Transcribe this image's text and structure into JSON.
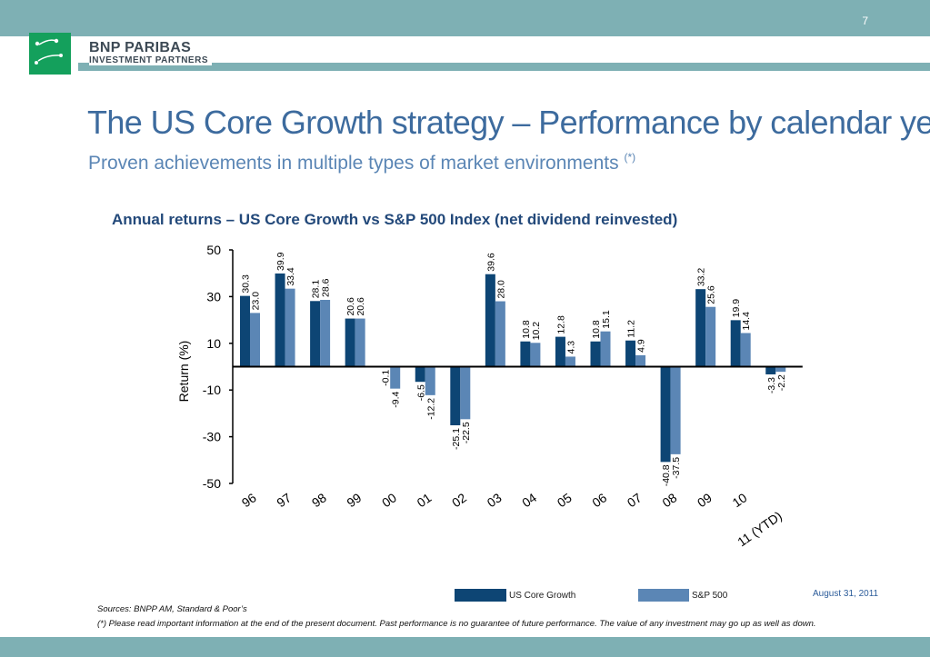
{
  "header": {
    "page_number": "7",
    "brand_name": "BNP PARIBAS",
    "brand_sub": "INVESTMENT PARTNERS"
  },
  "title": "The US Core Growth strategy – Performance by calendar year",
  "subtitle": "Proven achievements in multiple types of market environments",
  "subtitle_note": "(*)",
  "chart_title": "Annual returns – US Core Growth vs S&P 500 Index (net dividend reinvested)",
  "colors": {
    "accent_band": "#7eb0b4",
    "title_blue": "#3d6b9e",
    "us_core_growth": "#0d4574",
    "sp500": "#5b86b5"
  },
  "chart_data": {
    "type": "bar",
    "ylabel": "Return (%)",
    "xlabel": "",
    "ylim": [
      -50,
      50
    ],
    "yticks": [
      50,
      30,
      10,
      -10,
      -30,
      -50
    ],
    "categories": [
      "96",
      "97",
      "98",
      "99",
      "00",
      "01",
      "02",
      "03",
      "04",
      "05",
      "06",
      "07",
      "08",
      "09",
      "10",
      "11 (YTD)"
    ],
    "series": [
      {
        "name": "US Core Growth",
        "color": "#0d4574",
        "values": [
          30.3,
          39.9,
          28.1,
          20.6,
          -0.1,
          -6.5,
          -25.1,
          39.6,
          10.8,
          12.8,
          10.8,
          11.2,
          -40.8,
          33.2,
          19.9,
          -3.3
        ],
        "labels": [
          "30.3",
          "39.9",
          "28.1",
          "20.6",
          "-0.1",
          "-6.5",
          "-25.1",
          "39.6",
          "10.8",
          "12.8",
          "10.8",
          "11.2",
          "-40.8",
          "33.2",
          "19.9",
          "-3.3"
        ]
      },
      {
        "name": "S&P 500",
        "color": "#5b86b5",
        "values": [
          23.0,
          33.4,
          28.6,
          20.6,
          -9.4,
          -12.2,
          -22.5,
          28.0,
          10.2,
          4.3,
          15.1,
          4.9,
          -37.5,
          25.6,
          14.4,
          -2.2
        ],
        "labels": [
          "23.0",
          "33.4",
          "28.6",
          "20.6",
          "-9.4",
          "-12.2",
          "-22.5",
          "28.0",
          "10.2",
          "4.3",
          "15.1",
          "4.9",
          "-37.5",
          "25.6",
          "14.4",
          "-2.2"
        ]
      }
    ],
    "legend_position": "bottom",
    "grid": false
  },
  "date_note": "August 31, 2011",
  "sources": "Sources: BNPP AM, Standard & Poor’s",
  "disclaimer": "(*) Please read important information at the end of the present document. Past performance is no guarantee of future performance. The value of any investment may go up as well as down."
}
